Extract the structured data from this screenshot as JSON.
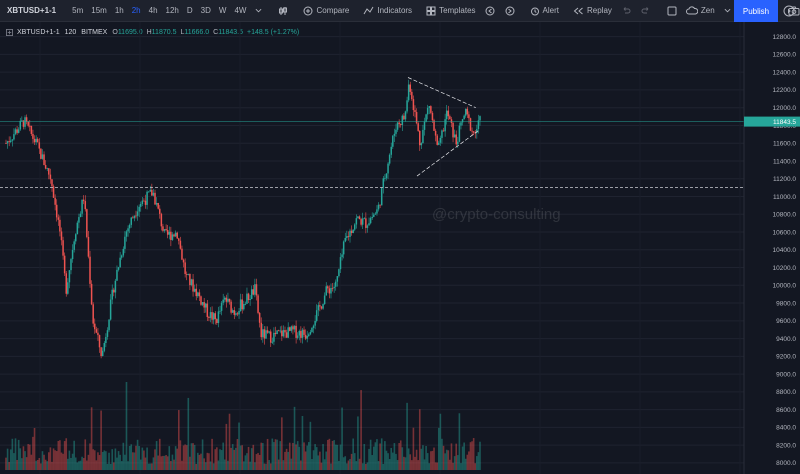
{
  "toolbar": {
    "symbol": "XBTUSD+1-1",
    "timeframes": [
      "5m",
      "15m",
      "1h",
      "2h",
      "4h",
      "12h",
      "D",
      "3D",
      "W",
      "4W"
    ],
    "active_timeframe": "2h",
    "compare": "Compare",
    "indicators": "Indicators",
    "templates": "Templates",
    "alert": "Alert",
    "replay": "Replay",
    "zen": "Zen",
    "publish": "Publish"
  },
  "legend": {
    "symbol": "XBTUSD+1-1",
    "interval": "120",
    "exchange": "BITMEX",
    "open_label": "O",
    "open": "11695.0",
    "high_label": "H",
    "high": "11870.5",
    "low_label": "L",
    "low": "11666.0",
    "close_label": "C",
    "close": "11843.5",
    "change": "+148.5 (+1.27%)"
  },
  "watermark": "@crypto-consulting",
  "colors": {
    "up": "#26a69a",
    "down": "#ef5350",
    "background": "#131722",
    "price_line": "#26a69a",
    "accent": "#2962ff"
  },
  "chart_data": {
    "type": "candlestick",
    "y_axis_labels": [
      "12800.0",
      "12600.0",
      "12400.0",
      "12200.0",
      "12000.0",
      "11800.0",
      "11600.0",
      "11400.0",
      "11200.0",
      "11000.0",
      "10800.0",
      "10600.0",
      "10400.0",
      "10200.0",
      "10000.0",
      "9800.0",
      "9600.0",
      "9400.0",
      "9200.0",
      "9000.0",
      "8800.0",
      "8600.0",
      "8400.0",
      "8200.0",
      "8000.0"
    ],
    "ylim": [
      7920,
      12920
    ],
    "current_price_label": "11843.5",
    "current_price": 11843.5,
    "horizontal_levels": [
      11100
    ],
    "triangle_upper": [
      [
        0.67,
        12340
      ],
      [
        0.783,
        12000
      ]
    ],
    "triangle_lower": [
      [
        0.685,
        11230
      ],
      [
        0.787,
        11740
      ]
    ],
    "price_path": [
      [
        0.0,
        11600
      ],
      [
        0.03,
        11850
      ],
      [
        0.05,
        11600
      ],
      [
        0.075,
        11200
      ],
      [
        0.09,
        10600
      ],
      [
        0.1,
        9950
      ],
      [
        0.115,
        10600
      ],
      [
        0.13,
        11000
      ],
      [
        0.145,
        9600
      ],
      [
        0.16,
        9200
      ],
      [
        0.18,
        10000
      ],
      [
        0.2,
        10600
      ],
      [
        0.22,
        10900
      ],
      [
        0.245,
        11050
      ],
      [
        0.265,
        10550
      ],
      [
        0.285,
        10600
      ],
      [
        0.3,
        10100
      ],
      [
        0.32,
        9900
      ],
      [
        0.335,
        9700
      ],
      [
        0.35,
        9600
      ],
      [
        0.365,
        9850
      ],
      [
        0.38,
        9700
      ],
      [
        0.395,
        9800
      ],
      [
        0.415,
        9950
      ],
      [
        0.425,
        9450
      ],
      [
        0.44,
        9420
      ],
      [
        0.46,
        9460
      ],
      [
        0.48,
        9480
      ],
      [
        0.5,
        9450
      ],
      [
        0.52,
        9700
      ],
      [
        0.535,
        9950
      ],
      [
        0.55,
        10000
      ],
      [
        0.565,
        10500
      ],
      [
        0.585,
        10750
      ],
      [
        0.6,
        10700
      ],
      [
        0.62,
        10850
      ],
      [
        0.635,
        11350
      ],
      [
        0.65,
        11800
      ],
      [
        0.665,
        11900
      ],
      [
        0.672,
        12300
      ],
      [
        0.69,
        11600
      ],
      [
        0.705,
        12050
      ],
      [
        0.72,
        11500
      ],
      [
        0.735,
        11950
      ],
      [
        0.75,
        11600
      ],
      [
        0.765,
        11950
      ],
      [
        0.78,
        11700
      ],
      [
        0.79,
        11843.5
      ]
    ],
    "volume_ylim": [
      0,
      1.2
    ]
  }
}
